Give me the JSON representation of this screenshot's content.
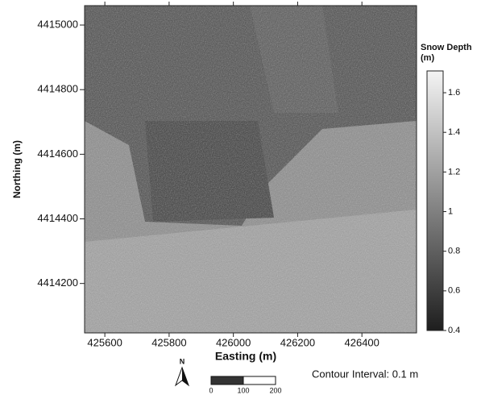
{
  "chart_data": {
    "type": "raster",
    "x_label": "Easting (m)",
    "y_label": "Northing (m)",
    "xlim": [
      425537,
      426570
    ],
    "ylim": [
      4414047,
      4415060
    ],
    "xticks": [
      425600,
      425800,
      426000,
      426200,
      426400
    ],
    "yticks": [
      4414200,
      4414400,
      4414600,
      4414800,
      4415000
    ],
    "colorbar": {
      "title": "Snow Depth (m)",
      "lim": [
        0.4,
        1.71
      ],
      "ticks": [
        0.4,
        0.6,
        0.8,
        1,
        1.2,
        1.4,
        1.6
      ],
      "colors": [
        "#1e1e1e",
        "#f4f4f4"
      ]
    },
    "north_label": "N",
    "scale_bar": {
      "ticks": [
        0,
        100,
        200
      ]
    },
    "note": "Contour Interval: 0.1 m"
  }
}
